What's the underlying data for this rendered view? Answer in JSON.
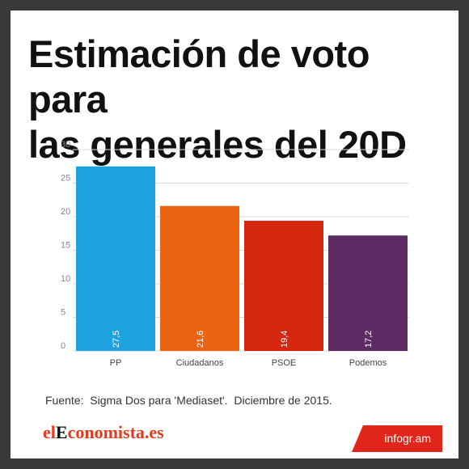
{
  "title_lines": [
    "Estimación de voto para",
    "las generales del 20D"
  ],
  "source": "Fuente:  Sigma Dos para 'Mediaset'.  Diciembre de 2015.",
  "logo": {
    "part1": "el",
    "part2": "E",
    "part3": "conomista.es"
  },
  "badge": "infogr.am",
  "colors": {
    "background": "#3a3a3a",
    "badge": "#e0251b"
  },
  "chart_data": {
    "type": "bar",
    "categories": [
      "PP",
      "Ciudadanos",
      "PSOE",
      "Podemos"
    ],
    "values": [
      27.5,
      21.6,
      19.4,
      17.2
    ],
    "value_labels": [
      "27,5",
      "21,6",
      "19,4",
      "17,2"
    ],
    "colors": [
      "#1fa3e0",
      "#ea6412",
      "#d7260f",
      "#5e2a63"
    ],
    "yticks": [
      "0",
      "5",
      "10",
      "15",
      "20",
      "25",
      "30"
    ],
    "ylim": [
      0,
      30
    ],
    "grid": true,
    "xlabel": "",
    "ylabel": ""
  }
}
